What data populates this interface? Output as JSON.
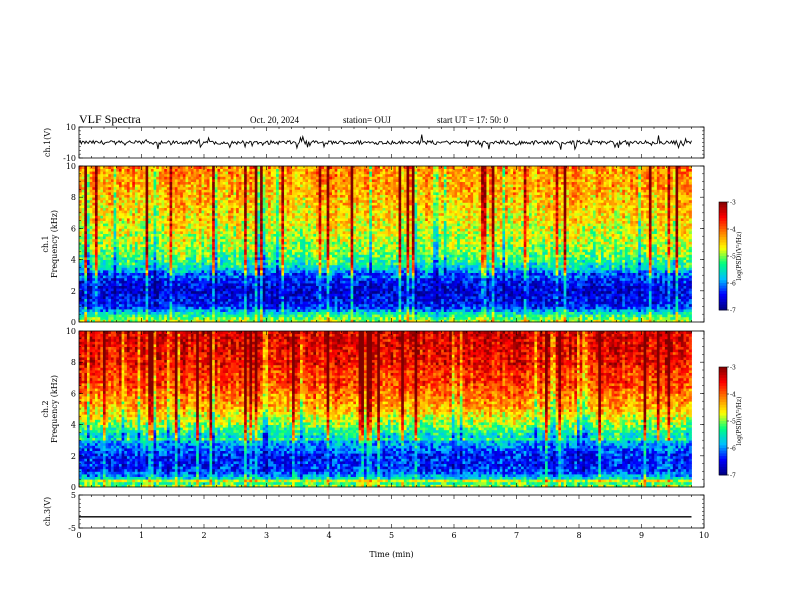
{
  "header": {
    "title": "VLF Spectra",
    "date": "Oct. 20, 2024",
    "station": "station= OUJ",
    "start": "start  UT =   17: 50: 0"
  },
  "chart_data": {
    "type": "heatmap",
    "xlabel": "Time (min)",
    "x_ticks": [
      "0",
      "1",
      "2",
      "3",
      "4",
      "5",
      "6",
      "7",
      "8",
      "9",
      "10"
    ],
    "xlim": [
      0,
      10
    ],
    "data_end_min": 9.8,
    "panels": [
      {
        "name": "ch1-waveform",
        "ylabel": "ch.1(V)",
        "kind": "waveform",
        "ylim": [
          -10,
          10
        ],
        "y_ticks": [
          "10",
          "-10"
        ],
        "baseline": 0,
        "typical_excursion": 2.5
      },
      {
        "name": "ch1-spectrogram",
        "ylabel_top": "ch.1",
        "ylabel": "Frequency (kHz)",
        "kind": "spectrogram",
        "ylim": [
          0,
          10
        ],
        "y_ticks": [
          "0",
          "2",
          "4",
          "6",
          "8",
          "10"
        ],
        "profile": [
          {
            "f": 0.0,
            "v": -4.8
          },
          {
            "f": 0.5,
            "v": -5.4
          },
          {
            "f": 1.0,
            "v": -6.4
          },
          {
            "f": 2.0,
            "v": -6.6
          },
          {
            "f": 3.0,
            "v": -6.3
          },
          {
            "f": 3.5,
            "v": -5.6
          },
          {
            "f": 4.5,
            "v": -5.0
          },
          {
            "f": 6.0,
            "v": -4.7
          },
          {
            "f": 8.0,
            "v": -4.4
          },
          {
            "f": 10.0,
            "v": -4.2
          }
        ],
        "colorbar": {
          "label": "log(PSD)(V²/Hz)",
          "ticks": [
            "-3",
            "-4",
            "-5",
            "-6",
            "-7"
          ],
          "range": [
            -7,
            -3
          ]
        }
      },
      {
        "name": "ch2-spectrogram",
        "ylabel_top": "ch.2",
        "ylabel": "Frequency (kHz)",
        "kind": "spectrogram",
        "ylim": [
          0,
          10
        ],
        "y_ticks": [
          "0",
          "2",
          "4",
          "6",
          "8",
          "10"
        ],
        "profile": [
          {
            "f": 0.0,
            "v": -4.9
          },
          {
            "f": 0.5,
            "v": -5.5
          },
          {
            "f": 1.0,
            "v": -6.3
          },
          {
            "f": 2.0,
            "v": -6.4
          },
          {
            "f": 3.0,
            "v": -5.8
          },
          {
            "f": 4.0,
            "v": -5.0
          },
          {
            "f": 5.0,
            "v": -4.4
          },
          {
            "f": 6.5,
            "v": -3.9
          },
          {
            "f": 8.0,
            "v": -3.6
          },
          {
            "f": 10.0,
            "v": -3.4
          }
        ],
        "colorbar": {
          "label": "log(PSD)(V²/Hz)",
          "ticks": [
            "-3",
            "-4",
            "-5",
            "-6",
            "-7"
          ],
          "range": [
            -7,
            -3
          ]
        }
      },
      {
        "name": "ch3-waveform",
        "ylabel": "ch.3(V)",
        "kind": "line",
        "ylim": [
          -5,
          5
        ],
        "y_ticks": [
          "5",
          "-5"
        ],
        "value": -1.6
      }
    ],
    "colormap": [
      "#000080",
      "#0000ff",
      "#00bfff",
      "#00ff80",
      "#ffff00",
      "#ff8000",
      "#ff0000",
      "#800000"
    ]
  }
}
